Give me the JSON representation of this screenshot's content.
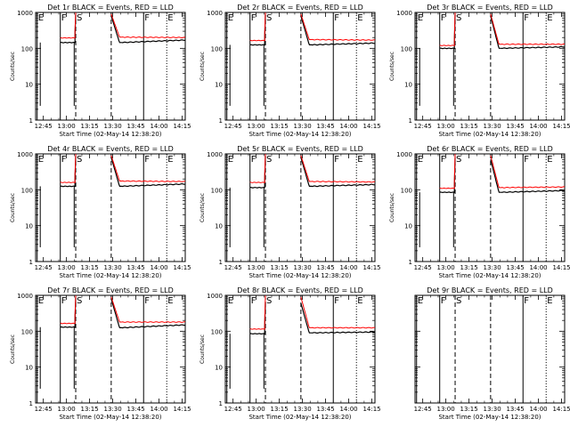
{
  "figure": {
    "title_template": "Det {det}r BLACK = Events, RED = LLD",
    "black_color": "#000000",
    "red_color": "#ff0000"
  },
  "chart_data": [
    {
      "det": "1",
      "type": "line",
      "title": "Det 1r BLACK = Events, RED = LLD",
      "xlabel": "Start Time (02-May-14 12:38:20)",
      "ylabel": "Counts/sec",
      "yscale": "log",
      "ylim": [
        1,
        1000
      ],
      "xlim": [
        "12:40",
        "14:17"
      ],
      "x_tick_labels": [
        "12:45",
        "13:00",
        "13:15",
        "13:30",
        "13:45",
        "14:00",
        "14:15"
      ],
      "y_tick_labels": [
        "1",
        "10",
        "100",
        "1000"
      ],
      "markers": [
        {
          "label": "E",
          "time": "12:41",
          "style": "solid"
        },
        {
          "label": "F",
          "time": "12:56",
          "style": "solid"
        },
        {
          "label": "S",
          "time": "13:06",
          "style": "dashed"
        },
        {
          "label": "",
          "time": "13:29",
          "style": "dashed"
        },
        {
          "label": "F",
          "time": "13:50",
          "style": "solid"
        },
        {
          "label": "E",
          "time": "14:05",
          "style": "dotted"
        }
      ],
      "gaps": [
        {
          "start": "13:06",
          "end": "13:29"
        }
      ],
      "series": [
        {
          "name": "BLACK = Events",
          "color": "#000000",
          "before": 145,
          "after_peak": 800,
          "after_floor": 145,
          "after_end": 170
        },
        {
          "name": "RED = LLD",
          "color": "#ff0000",
          "before": 195,
          "after_peak": 900,
          "after_floor": 205,
          "after_end": 200
        }
      ]
    },
    {
      "det": "2",
      "type": "line",
      "title": "Det 2r BLACK = Events, RED = LLD",
      "xlabel": "Start Time (02-May-14 12:38:20)",
      "ylabel": "Counts/sec",
      "yscale": "log",
      "ylim": [
        1,
        1000
      ],
      "xlim": [
        "12:40",
        "14:17"
      ],
      "x_tick_labels": [
        "12:45",
        "13:00",
        "13:15",
        "13:30",
        "13:45",
        "14:00",
        "14:15"
      ],
      "y_tick_labels": [
        "1",
        "10",
        "100",
        "1000"
      ],
      "markers": [
        {
          "label": "E",
          "time": "12:41",
          "style": "solid"
        },
        {
          "label": "F",
          "time": "12:56",
          "style": "solid"
        },
        {
          "label": "S",
          "time": "13:06",
          "style": "dashed"
        },
        {
          "label": "",
          "time": "13:29",
          "style": "dashed"
        },
        {
          "label": "F",
          "time": "13:50",
          "style": "solid"
        },
        {
          "label": "E",
          "time": "14:05",
          "style": "dotted"
        }
      ],
      "gaps": [
        {
          "start": "13:06",
          "end": "13:29"
        }
      ],
      "series": [
        {
          "name": "BLACK = Events",
          "color": "#000000",
          "before": 125,
          "after_peak": 800,
          "after_floor": 125,
          "after_end": 140
        },
        {
          "name": "RED = LLD",
          "color": "#ff0000",
          "before": 165,
          "after_peak": 900,
          "after_floor": 175,
          "after_end": 170
        }
      ]
    },
    {
      "det": "3",
      "type": "line",
      "title": "Det 3r BLACK = Events, RED = LLD",
      "xlabel": "Start Time (02-May-14 12:38:20)",
      "ylabel": "Counts/sec",
      "yscale": "log",
      "ylim": [
        1,
        1000
      ],
      "xlim": [
        "12:40",
        "14:17"
      ],
      "x_tick_labels": [
        "12:45",
        "13:00",
        "13:15",
        "13:30",
        "13:45",
        "14:00",
        "14:15"
      ],
      "y_tick_labels": [
        "1",
        "10",
        "100",
        "1000"
      ],
      "markers": [
        {
          "label": "E",
          "time": "12:41",
          "style": "solid"
        },
        {
          "label": "F",
          "time": "12:56",
          "style": "solid"
        },
        {
          "label": "S",
          "time": "13:06",
          "style": "dashed"
        },
        {
          "label": "",
          "time": "13:29",
          "style": "dashed"
        },
        {
          "label": "F",
          "time": "13:50",
          "style": "solid"
        },
        {
          "label": "E",
          "time": "14:05",
          "style": "dotted"
        }
      ],
      "gaps": [
        {
          "start": "13:06",
          "end": "13:29"
        }
      ],
      "series": [
        {
          "name": "BLACK = Events",
          "color": "#000000",
          "before": 100,
          "after_peak": 800,
          "after_floor": 100,
          "after_end": 110
        },
        {
          "name": "RED = LLD",
          "color": "#ff0000",
          "before": 120,
          "after_peak": 900,
          "after_floor": 130,
          "after_end": 130
        }
      ]
    },
    {
      "det": "4",
      "type": "line",
      "title": "Det 4r BLACK = Events, RED = LLD",
      "xlabel": "Start Time (02-May-14 12:38:20)",
      "ylabel": "Counts/sec",
      "yscale": "log",
      "ylim": [
        1,
        1000
      ],
      "xlim": [
        "12:40",
        "14:17"
      ],
      "x_tick_labels": [
        "12:45",
        "13:00",
        "13:15",
        "13:30",
        "13:45",
        "14:00",
        "14:15"
      ],
      "y_tick_labels": [
        "1",
        "10",
        "100",
        "1000"
      ],
      "markers": [
        {
          "label": "E",
          "time": "12:41",
          "style": "solid"
        },
        {
          "label": "F",
          "time": "12:56",
          "style": "solid"
        },
        {
          "label": "S",
          "time": "13:06",
          "style": "dashed"
        },
        {
          "label": "",
          "time": "13:29",
          "style": "dashed"
        },
        {
          "label": "F",
          "time": "13:50",
          "style": "solid"
        },
        {
          "label": "E",
          "time": "14:05",
          "style": "dotted"
        }
      ],
      "gaps": [
        {
          "start": "13:06",
          "end": "13:29"
        }
      ],
      "series": [
        {
          "name": "BLACK = Events",
          "color": "#000000",
          "before": 125,
          "after_peak": 800,
          "after_floor": 125,
          "after_end": 145
        },
        {
          "name": "RED = LLD",
          "color": "#ff0000",
          "before": 160,
          "after_peak": 900,
          "after_floor": 175,
          "after_end": 170
        }
      ]
    },
    {
      "det": "5",
      "type": "line",
      "title": "Det 5r BLACK = Events, RED = LLD",
      "xlabel": "Start Time (02-May-14 12:38:20)",
      "ylabel": "Counts/sec",
      "yscale": "log",
      "ylim": [
        1,
        1000
      ],
      "xlim": [
        "12:40",
        "14:17"
      ],
      "x_tick_labels": [
        "12:45",
        "13:00",
        "13:15",
        "13:30",
        "13:45",
        "14:00",
        "14:15"
      ],
      "y_tick_labels": [
        "1",
        "10",
        "100",
        "1000"
      ],
      "markers": [
        {
          "label": "E",
          "time": "12:41",
          "style": "solid"
        },
        {
          "label": "F",
          "time": "12:56",
          "style": "solid"
        },
        {
          "label": "S",
          "time": "13:06",
          "style": "dashed"
        },
        {
          "label": "",
          "time": "13:29",
          "style": "dashed"
        },
        {
          "label": "F",
          "time": "13:50",
          "style": "solid"
        },
        {
          "label": "E",
          "time": "14:05",
          "style": "dotted"
        }
      ],
      "gaps": [
        {
          "start": "13:06",
          "end": "13:29"
        }
      ],
      "series": [
        {
          "name": "BLACK = Events",
          "color": "#000000",
          "before": 115,
          "after_peak": 800,
          "after_floor": 125,
          "after_end": 140
        },
        {
          "name": "RED = LLD",
          "color": "#ff0000",
          "before": 160,
          "after_peak": 900,
          "after_floor": 170,
          "after_end": 165
        }
      ]
    },
    {
      "det": "6",
      "type": "line",
      "title": "Det 6r BLACK = Events, RED = LLD",
      "xlabel": "Start Time (02-May-14 12:38:20)",
      "ylabel": "Counts/sec",
      "yscale": "log",
      "ylim": [
        1,
        1000
      ],
      "xlim": [
        "12:40",
        "14:17"
      ],
      "x_tick_labels": [
        "12:45",
        "13:00",
        "13:15",
        "13:30",
        "13:45",
        "14:00",
        "14:15"
      ],
      "y_tick_labels": [
        "1",
        "10",
        "100",
        "1000"
      ],
      "markers": [
        {
          "label": "E",
          "time": "12:41",
          "style": "solid"
        },
        {
          "label": "F",
          "time": "12:56",
          "style": "solid"
        },
        {
          "label": "S",
          "time": "13:06",
          "style": "dashed"
        },
        {
          "label": "",
          "time": "13:29",
          "style": "dashed"
        },
        {
          "label": "F",
          "time": "13:50",
          "style": "solid"
        },
        {
          "label": "E",
          "time": "14:05",
          "style": "dotted"
        }
      ],
      "gaps": [
        {
          "start": "13:06",
          "end": "13:29"
        }
      ],
      "series": [
        {
          "name": "BLACK = Events",
          "color": "#000000",
          "before": 85,
          "after_peak": 700,
          "after_floor": 85,
          "after_end": 95
        },
        {
          "name": "RED = LLD",
          "color": "#ff0000",
          "before": 110,
          "after_peak": 900,
          "after_floor": 115,
          "after_end": 120
        }
      ]
    },
    {
      "det": "7",
      "type": "line",
      "title": "Det 7r BLACK = Events, RED = LLD",
      "xlabel": "Start Time (02-May-14 12:38:20)",
      "ylabel": "Counts/sec",
      "yscale": "log",
      "ylim": [
        1,
        1000
      ],
      "xlim": [
        "12:40",
        "14:17"
      ],
      "x_tick_labels": [
        "12:45",
        "13:00",
        "13:15",
        "13:30",
        "13:45",
        "14:00",
        "14:15"
      ],
      "y_tick_labels": [
        "1",
        "10",
        "100",
        "1000"
      ],
      "markers": [
        {
          "label": "E",
          "time": "12:41",
          "style": "solid"
        },
        {
          "label": "F",
          "time": "12:56",
          "style": "solid"
        },
        {
          "label": "S",
          "time": "13:06",
          "style": "dashed"
        },
        {
          "label": "",
          "time": "13:29",
          "style": "dashed"
        },
        {
          "label": "F",
          "time": "13:50",
          "style": "solid"
        },
        {
          "label": "E",
          "time": "14:05",
          "style": "dotted"
        }
      ],
      "gaps": [
        {
          "start": "13:06",
          "end": "13:29"
        }
      ],
      "series": [
        {
          "name": "BLACK = Events",
          "color": "#000000",
          "before": 130,
          "after_peak": 800,
          "after_floor": 125,
          "after_end": 150
        },
        {
          "name": "RED = LLD",
          "color": "#ff0000",
          "before": 165,
          "after_peak": 900,
          "after_floor": 180,
          "after_end": 180
        }
      ]
    },
    {
      "det": "8",
      "type": "line",
      "title": "Det 8r BLACK = Events, RED = LLD",
      "xlabel": "Start Time (02-May-14 12:38:20)",
      "ylabel": "Counts/sec",
      "yscale": "log",
      "ylim": [
        1,
        1000
      ],
      "xlim": [
        "12:40",
        "14:17"
      ],
      "x_tick_labels": [
        "12:45",
        "13:00",
        "13:15",
        "13:30",
        "13:45",
        "14:00",
        "14:15"
      ],
      "y_tick_labels": [
        "1",
        "10",
        "100",
        "1000"
      ],
      "markers": [
        {
          "label": "E",
          "time": "12:41",
          "style": "solid"
        },
        {
          "label": "F",
          "time": "12:56",
          "style": "solid"
        },
        {
          "label": "S",
          "time": "13:06",
          "style": "dashed"
        },
        {
          "label": "",
          "time": "13:29",
          "style": "dashed"
        },
        {
          "label": "F",
          "time": "13:50",
          "style": "solid"
        },
        {
          "label": "E",
          "time": "14:05",
          "style": "dotted"
        }
      ],
      "gaps": [
        {
          "start": "13:06",
          "end": "13:29"
        }
      ],
      "series": [
        {
          "name": "BLACK = Events",
          "color": "#000000",
          "before": 85,
          "after_peak": 600,
          "after_floor": 90,
          "after_end": 95
        },
        {
          "name": "RED = LLD",
          "color": "#ff0000",
          "before": 115,
          "after_peak": 900,
          "after_floor": 125,
          "after_end": 125
        }
      ]
    },
    {
      "det": "9",
      "type": "line",
      "title": "Det 9r BLACK = Events, RED = LLD",
      "xlabel": "Start Time (02-May-14 12:38:20)",
      "ylabel": "",
      "yscale": "log",
      "ylim": [
        1,
        1000
      ],
      "xlim": [
        "12:40",
        "14:17"
      ],
      "x_tick_labels": [
        "12:45",
        "13:00",
        "13:15",
        "13:30",
        "13:45",
        "14:00",
        "14:15"
      ],
      "y_tick_labels": [],
      "markers": [
        {
          "label": "E",
          "time": "12:41",
          "style": "solid"
        },
        {
          "label": "F",
          "time": "12:56",
          "style": "solid"
        },
        {
          "label": "S",
          "time": "13:06",
          "style": "dashed"
        },
        {
          "label": "",
          "time": "13:29",
          "style": "dashed"
        },
        {
          "label": "F",
          "time": "13:50",
          "style": "solid"
        },
        {
          "label": "E",
          "time": "14:05",
          "style": "dotted"
        }
      ],
      "gaps": [
        {
          "start": "13:06",
          "end": "13:29"
        }
      ],
      "series": []
    }
  ]
}
